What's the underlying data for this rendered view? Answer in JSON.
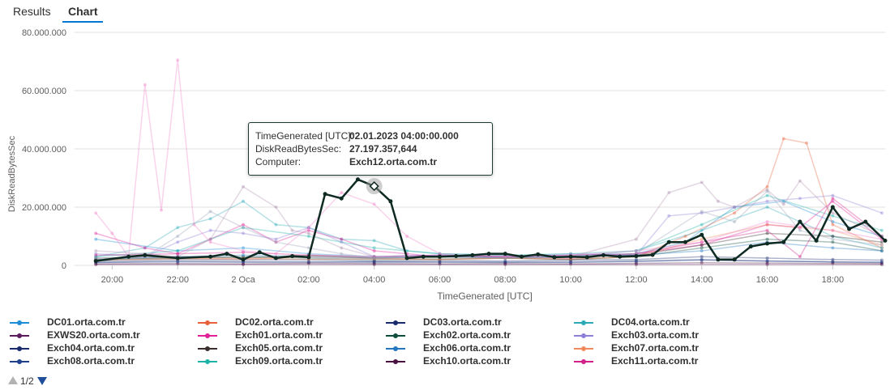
{
  "tabs": [
    {
      "label": "Results",
      "active": false
    },
    {
      "label": "Chart",
      "active": true
    }
  ],
  "tooltip": {
    "rows": [
      {
        "label": "TimeGenerated [UTC]:",
        "value": "02.01.2023 04:00:00.000"
      },
      {
        "label": "DiskReadBytesSec:",
        "value": "27.197.357,644"
      },
      {
        "label": "Computer:",
        "value": "Exch12.orta.com.tr"
      }
    ]
  },
  "pager": {
    "text": "1/2"
  },
  "chart_data": {
    "type": "line",
    "xlabel": "TimeGenerated [UTC]",
    "ylabel": "DiskReadBytesSec",
    "ylim": [
      0,
      80000000
    ],
    "yticks": [
      {
        "value": 0,
        "label": "0"
      },
      {
        "value": 20000000,
        "label": "20.000.000"
      },
      {
        "value": 40000000,
        "label": "40.000.000"
      },
      {
        "value": 60000000,
        "label": "60.000.000"
      },
      {
        "value": 80000000,
        "label": "80.000.000"
      }
    ],
    "xrange_hours": [
      -5,
      19.6
    ],
    "xticks": [
      {
        "hour": -4,
        "label": "20:00"
      },
      {
        "hour": -2,
        "label": "22:00"
      },
      {
        "hour": 0,
        "label": "2 Oca"
      },
      {
        "hour": 2,
        "label": "02:00"
      },
      {
        "hour": 4,
        "label": "04:00"
      },
      {
        "hour": 6,
        "label": "06:00"
      },
      {
        "hour": 8,
        "label": "08:00"
      },
      {
        "hour": 10,
        "label": "10:00"
      },
      {
        "hour": 12,
        "label": "12:00"
      },
      {
        "hour": 14,
        "label": "14:00"
      },
      {
        "hour": 16,
        "label": "16:00"
      },
      {
        "hour": 18,
        "label": "18:00"
      }
    ],
    "grid": true,
    "legend_position": "bottom",
    "highlight": {
      "series": "Exch12.orta.com.tr",
      "hour": 4,
      "value": 27197357.644
    },
    "series": [
      {
        "name": "DC01.orta.com.tr",
        "color": "#1f8dd6",
        "shown_in_legend": true,
        "x": [
          -4.5,
          -2,
          0,
          2,
          4,
          6,
          8,
          10,
          12,
          13.5,
          15,
          16.5,
          18,
          19.5
        ],
        "y": [
          9000000,
          5000000,
          6000000,
          4000000,
          3000000,
          3500000,
          3000000,
          3500000,
          4000000,
          8000000,
          20000000,
          22000000,
          15000000,
          10000000
        ]
      },
      {
        "name": "DC02.orta.com.tr",
        "color": "#e8603c",
        "shown_in_legend": true,
        "x": [
          -4.5,
          -2,
          0,
          2,
          4,
          6,
          8,
          10,
          12,
          13.5,
          15,
          16,
          16.5,
          17.2,
          18,
          19.5
        ],
        "y": [
          2000000,
          2500000,
          2000000,
          3000000,
          2500000,
          2000000,
          2500000,
          2000000,
          3000000,
          10000000,
          18000000,
          27000000,
          43500000,
          42000000,
          14000000,
          6000000
        ]
      },
      {
        "name": "DC03.orta.com.tr",
        "color": "#1a2b6d",
        "shown_in_legend": true,
        "x": [
          -4.5,
          -2,
          0,
          2,
          4,
          6,
          8,
          10,
          12,
          14,
          16,
          18,
          19.5
        ],
        "y": [
          1000000,
          1500000,
          1200000,
          1000000,
          1300000,
          1100000,
          1000000,
          1200000,
          1500000,
          2000000,
          1500000,
          1200000,
          1000000
        ]
      },
      {
        "name": "DC04.orta.com.tr",
        "color": "#2aa9b8",
        "shown_in_legend": true,
        "x": [
          -4.5,
          -3,
          -2,
          -1,
          0,
          1,
          2,
          3,
          4,
          5,
          6,
          8,
          10,
          12,
          14,
          16,
          18,
          19.5
        ],
        "y": [
          3000000,
          6000000,
          13000000,
          16000000,
          22000000,
          14000000,
          13000000,
          9000000,
          8500000,
          5000000,
          4000000,
          3500000,
          3000000,
          5000000,
          12000000,
          20000000,
          10000000,
          6000000
        ]
      },
      {
        "name": "EXWS20.orta.com.tr",
        "color": "#5c1c5c",
        "shown_in_legend": true,
        "x": [
          -4.5,
          0,
          4,
          8,
          12,
          16,
          19.5
        ],
        "y": [
          300000,
          300000,
          300000,
          300000,
          300000,
          300000,
          300000
        ]
      },
      {
        "name": "Exch01.orta.com.tr",
        "color": "#e0209a",
        "shown_in_legend": true,
        "x": [
          -4.5,
          -3,
          -2,
          -1,
          0,
          1,
          2,
          3,
          4,
          5,
          6,
          8,
          10,
          12,
          14,
          16,
          17,
          18,
          19.5
        ],
        "y": [
          11000000,
          6000000,
          4000000,
          9000000,
          14000000,
          8000000,
          12000000,
          9000000,
          5000000,
          4000000,
          3000000,
          3000000,
          2500000,
          4000000,
          7000000,
          14000000,
          13000000,
          22000000,
          9000000
        ]
      },
      {
        "name": "Exch02.orta.com.tr",
        "color": "#0e4e3e",
        "shown_in_legend": true,
        "x": [
          -4.5,
          -2,
          0,
          2,
          4,
          6,
          8,
          10,
          12,
          14,
          16,
          18,
          19.5
        ],
        "y": [
          2000000,
          2500000,
          3000000,
          2500000,
          2000000,
          2200000,
          2500000,
          2000000,
          3000000,
          6000000,
          9000000,
          8000000,
          5000000
        ]
      },
      {
        "name": "Exch03.orta.com.tr",
        "color": "#8b7fd6",
        "shown_in_legend": true,
        "x": [
          -4.5,
          -3,
          -2,
          -1,
          0,
          1,
          2,
          3,
          4,
          6,
          8,
          10,
          12,
          13,
          14,
          15,
          16,
          17,
          18,
          19.5
        ],
        "y": [
          4000000,
          3000000,
          8000000,
          12000000,
          11000000,
          9000000,
          13000000,
          8000000,
          3000000,
          3500000,
          3000000,
          4000000,
          3500000,
          17000000,
          18000000,
          20000000,
          22000000,
          23000000,
          24000000,
          18000000
        ]
      },
      {
        "name": "Exch04.orta.com.tr",
        "color": "#1a2b6d",
        "shown_in_legend": true,
        "x": [
          -4.5,
          -2,
          0,
          2,
          4,
          6,
          8,
          10,
          12,
          14,
          16,
          18,
          19.5
        ],
        "y": [
          1500000,
          2000000,
          1800000,
          2000000,
          1500000,
          1700000,
          1500000,
          1800000,
          2000000,
          3000000,
          2500000,
          2000000,
          1800000
        ]
      },
      {
        "name": "Exch05.orta.com.tr",
        "color": "#3a2d2d",
        "shown_in_legend": true,
        "x": [
          -4.5,
          -2,
          0,
          2,
          4,
          6,
          8,
          10,
          12,
          14,
          16,
          18,
          19.5
        ],
        "y": [
          2500000,
          3000000,
          2500000,
          3500000,
          2500000,
          3000000,
          2500000,
          3000000,
          3500000,
          7000000,
          11000000,
          10000000,
          8000000
        ]
      },
      {
        "name": "Exch06.orta.com.tr",
        "color": "#2277c0",
        "shown_in_legend": true,
        "x": [
          -4.5,
          -2,
          0,
          2,
          4,
          6,
          8,
          10,
          12,
          14,
          16,
          18,
          19.5
        ],
        "y": [
          2000000,
          3000000,
          3500000,
          3000000,
          2500000,
          3000000,
          2800000,
          3000000,
          3500000,
          5000000,
          8000000,
          6000000,
          5000000
        ]
      },
      {
        "name": "Exch07.orta.com.tr",
        "color": "#f08a5d",
        "shown_in_legend": true,
        "x": [
          -4.5,
          -2,
          0,
          2,
          4,
          6,
          8,
          10,
          12,
          14,
          16,
          18,
          19.5
        ],
        "y": [
          1800000,
          2200000,
          2500000,
          2000000,
          2200000,
          2000000,
          2500000,
          2200000,
          3000000,
          9000000,
          14000000,
          12000000,
          7000000
        ]
      },
      {
        "name": "Exch08.orta.com.tr",
        "color": "#1f3f8f",
        "shown_in_legend": true,
        "x": [
          -4.5,
          -2,
          0,
          2,
          4,
          6,
          8,
          10,
          12,
          14,
          16,
          18,
          19.5
        ],
        "y": [
          1000000,
          1200000,
          1100000,
          1300000,
          1000000,
          1200000,
          1100000,
          1000000,
          1300000,
          1800000,
          1500000,
          1200000,
          1100000
        ]
      },
      {
        "name": "Exch09.orta.com.tr",
        "color": "#1fb3a8",
        "shown_in_legend": true,
        "x": [
          -4.5,
          -2,
          0,
          2,
          4,
          6,
          8,
          10,
          12,
          14,
          16,
          18,
          19.5
        ],
        "y": [
          3000000,
          5000000,
          13000000,
          10000000,
          6000000,
          4000000,
          3500000,
          4000000,
          5000000,
          14000000,
          24000000,
          17000000,
          12000000
        ]
      },
      {
        "name": "Exch10.orta.com.tr",
        "color": "#4a1040",
        "shown_in_legend": true,
        "x": [
          -4.5,
          -2,
          0,
          2,
          4,
          6,
          8,
          10,
          12,
          14,
          16,
          18,
          19.5
        ],
        "y": [
          500000,
          600000,
          500000,
          700000,
          600000,
          500000,
          600000,
          500000,
          700000,
          900000,
          800000,
          700000,
          600000
        ]
      },
      {
        "name": "Exch11.orta.com.tr",
        "color": "#d21f8a",
        "shown_in_legend": true,
        "x": [
          -4.5,
          -2,
          0,
          2,
          4,
          6,
          8,
          10,
          12,
          14,
          16,
          17,
          18,
          19.5
        ],
        "y": [
          3500000,
          4000000,
          4500000,
          3500000,
          3000000,
          3500000,
          3000000,
          3500000,
          4000000,
          8000000,
          12000000,
          3000000,
          23000000,
          10000000
        ]
      },
      {
        "name": "",
        "color": "#f080c8",
        "shown_in_legend": false,
        "x": [
          -4.5,
          -4,
          -3.5,
          -3,
          -2.5,
          -2,
          -1.5,
          -1,
          0,
          1,
          2,
          3,
          4,
          5,
          6,
          8,
          10,
          12,
          14,
          16,
          18,
          19.5
        ],
        "y": [
          18000000,
          11000000,
          3000000,
          62000000,
          19000000,
          70500000,
          14000000,
          8000000,
          5000000,
          4000000,
          13000000,
          25000000,
          21000000,
          10000000,
          4000000,
          3000000,
          3500000,
          5000000,
          8000000,
          15000000,
          12000000,
          9000000
        ]
      },
      {
        "name": "",
        "color": "#b08fb0",
        "shown_in_legend": false,
        "x": [
          -4.5,
          -3,
          -2,
          -1,
          0,
          1,
          1.5,
          2,
          3,
          4,
          6,
          8,
          10,
          12,
          13,
          14,
          14.5,
          15,
          16,
          16.5,
          17,
          18,
          19.5
        ],
        "y": [
          5000000,
          4000000,
          3000000,
          9000000,
          27000000,
          20000000,
          12000000,
          11000000,
          6000000,
          3000000,
          3000000,
          3500000,
          3000000,
          9000000,
          25000000,
          28500000,
          22000000,
          20000000,
          26000000,
          21000000,
          29000000,
          18000000,
          10000000
        ]
      },
      {
        "name": "",
        "color": "#9aa4b8",
        "shown_in_legend": false,
        "x": [
          -4.5,
          -3,
          -2,
          -1,
          0,
          1,
          2,
          3,
          4,
          6,
          8,
          10,
          12,
          14,
          15,
          16,
          17,
          18,
          19.5
        ],
        "y": [
          2500000,
          3000000,
          10000000,
          18500000,
          13000000,
          8000000,
          6000000,
          4000000,
          2500000,
          3000000,
          2500000,
          3000000,
          4000000,
          18500000,
          15000000,
          25500000,
          12000000,
          9000000,
          7000000
        ]
      },
      {
        "name": "Exch12.orta.com.tr",
        "color": "#0e2a22",
        "shown_in_legend": false,
        "highlighted": true,
        "x": [
          -4.5,
          -3.5,
          -3,
          -2,
          -1,
          -0.5,
          0,
          0.5,
          1,
          1.5,
          2,
          2.5,
          3,
          3.5,
          4,
          4.5,
          5,
          5.5,
          6,
          6.5,
          7,
          7.5,
          8,
          8.5,
          9,
          9.5,
          10,
          10.5,
          11,
          11.5,
          12,
          12.5,
          13,
          13.5,
          14,
          14.5,
          15,
          15.5,
          16,
          16.5,
          17,
          17.5,
          18,
          18.5,
          19,
          19.6
        ],
        "y": [
          1500000,
          3000000,
          3500000,
          2500000,
          3000000,
          4000000,
          2000000,
          4500000,
          2500000,
          3200000,
          2800000,
          24500000,
          23000000,
          29500000,
          27197357.644,
          22000000,
          2500000,
          3000000,
          3000000,
          3200000,
          3500000,
          4000000,
          4000000,
          3000000,
          3800000,
          2800000,
          3000000,
          2800000,
          3500000,
          3000000,
          3200000,
          3600000,
          8000000,
          8000000,
          10500000,
          2000000,
          2000000,
          6500000,
          7500000,
          8000000,
          15000000,
          8500000,
          20000000,
          12500000,
          15000000,
          8500000
        ]
      }
    ]
  }
}
